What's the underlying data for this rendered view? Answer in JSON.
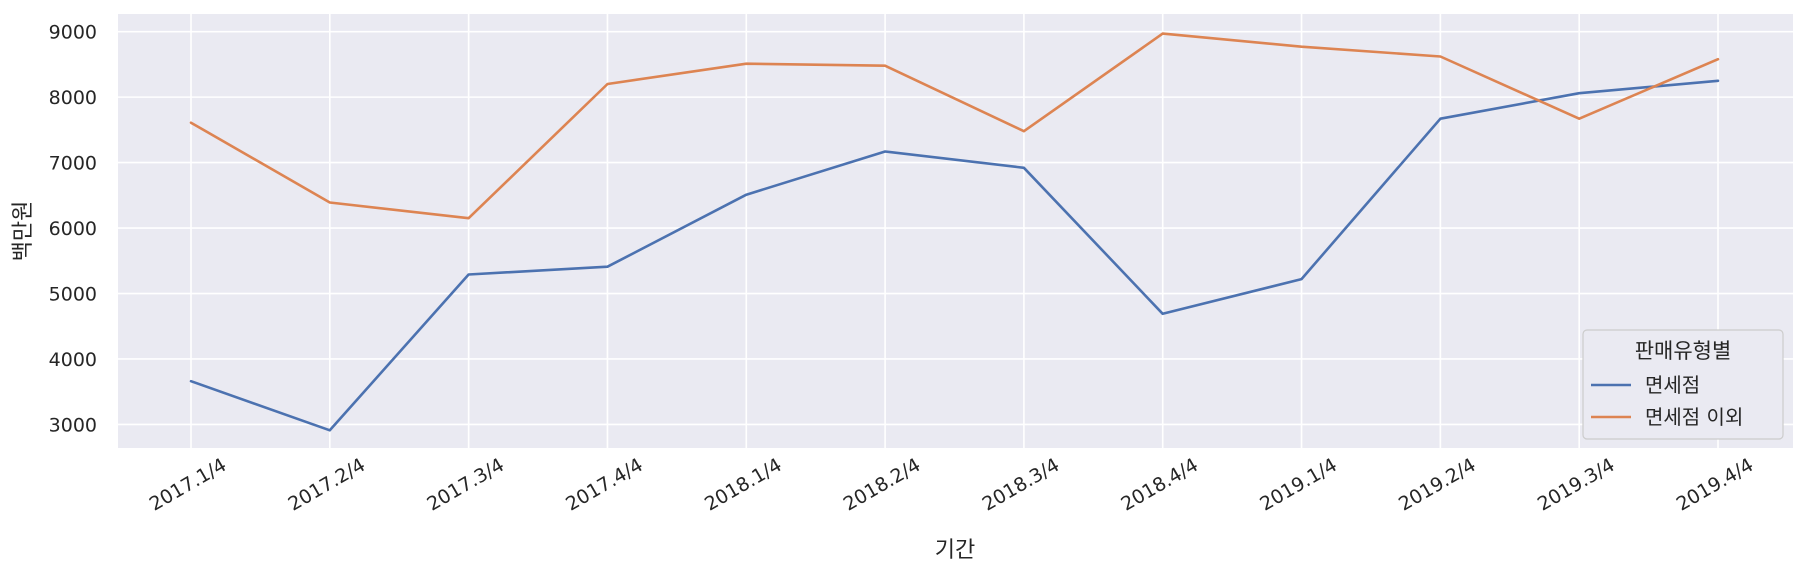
{
  "chart_data": {
    "type": "line",
    "title": "",
    "xlabel": "기간",
    "ylabel": "백만원",
    "categories": [
      "2017.1/4",
      "2017.2/4",
      "2017.3/4",
      "2017.4/4",
      "2018.1/4",
      "2018.2/4",
      "2018.3/4",
      "2018.4/4",
      "2019.1/4",
      "2019.2/4",
      "2019.3/4",
      "2019.4/4"
    ],
    "series": [
      {
        "name": "면세점",
        "color": "#4c72b0",
        "values": [
          3660,
          2910,
          5290,
          5410,
          6510,
          7170,
          6920,
          4690,
          5220,
          7670,
          8060,
          8250
        ]
      },
      {
        "name": "면세점 이외",
        "color": "#dd8452",
        "values": [
          7610,
          6390,
          6150,
          8200,
          8510,
          8480,
          7480,
          8970,
          8770,
          8620,
          7670,
          8580
        ]
      }
    ],
    "yticks": [
      3000,
      4000,
      5000,
      6000,
      7000,
      8000,
      9000
    ],
    "ylim": [
      2640,
      9270
    ],
    "grid": true,
    "legend": {
      "title": "판매유형별",
      "placement": "bottom-right"
    },
    "background": "#eaeaf2"
  }
}
